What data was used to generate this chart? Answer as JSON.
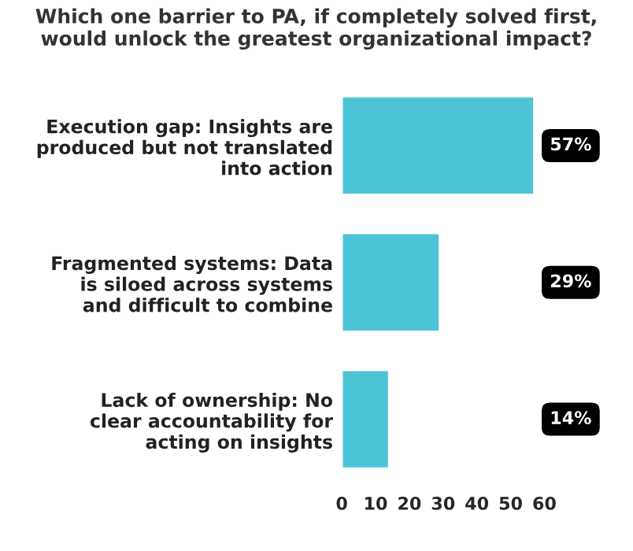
{
  "chart_data": {
    "type": "bar",
    "orientation": "horizontal",
    "title": "Which one barrier to PA, if completely solved first, would unlock the greatest organizational impact?",
    "categories": [
      "Execution gap: Insights are\nproduced but not translated\ninto action",
      "Fragmented systems: Data\nis siloed across systems\nand difficult to combine",
      "Lack of ownership: No\nclear accountability for\nacting on insights"
    ],
    "values": [
      57,
      29,
      14
    ],
    "value_labels": [
      "57%",
      "29%",
      "14%"
    ],
    "color": "#4cc4d5",
    "xlim": [
      0,
      60
    ],
    "xticks": [
      0,
      10,
      20,
      30,
      40,
      50,
      60
    ],
    "grid": false,
    "legend": false
  }
}
